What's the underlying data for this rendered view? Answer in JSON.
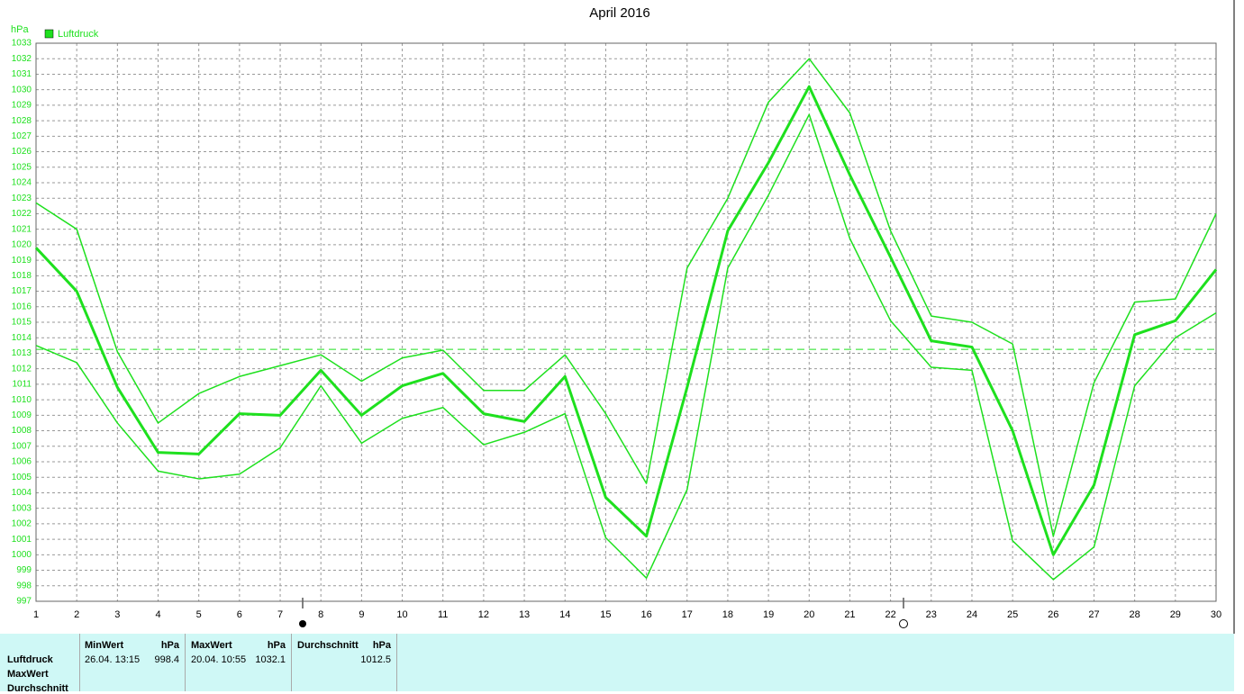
{
  "chart_data": {
    "type": "line",
    "title": "April 2016",
    "y_unit": "hPa",
    "x": [
      1,
      2,
      3,
      4,
      5,
      6,
      7,
      8,
      9,
      10,
      11,
      12,
      13,
      14,
      15,
      16,
      17,
      18,
      19,
      20,
      21,
      22,
      23,
      24,
      25,
      26,
      27,
      28,
      29,
      30
    ],
    "series": [
      {
        "name": "Luftdruck",
        "color": "#1ee01e",
        "values": [
          1019.8,
          1017.0,
          1010.8,
          1006.6,
          1006.5,
          1009.1,
          1009.0,
          1011.9,
          1009.0,
          1010.9,
          1011.7,
          1009.1,
          1008.6,
          1011.5,
          1003.7,
          1001.2,
          1010.8,
          1020.9,
          1025.3,
          1030.2,
          1024.5,
          1019.2,
          1013.8,
          1013.4,
          1008.0,
          1000.0,
          1004.5,
          1014.2,
          1015.1,
          1018.4
        ],
        "max_values": [
          1022.7,
          1021.0,
          1013.1,
          1008.5,
          1010.4,
          1011.5,
          1012.2,
          1012.9,
          1011.2,
          1012.7,
          1013.2,
          1010.6,
          1010.6,
          1012.9,
          1009.1,
          1004.6,
          1018.5,
          1023.0,
          1029.2,
          1032.0,
          1028.5,
          1020.9,
          1015.4,
          1015.0,
          1013.6,
          1001.2,
          1011.1,
          1016.3,
          1016.5,
          1022.0
        ],
        "min_values": [
          1013.5,
          1012.4,
          1008.5,
          1005.4,
          1004.9,
          1005.2,
          1006.9,
          1010.9,
          1007.2,
          1008.8,
          1009.5,
          1007.1,
          1007.9,
          1009.1,
          1001.1,
          998.5,
          1004.2,
          1018.5,
          1023.2,
          1028.4,
          1020.4,
          1015.1,
          1012.1,
          1011.9,
          1000.9,
          998.4,
          1000.5,
          1010.9,
          1014.0,
          1015.6
        ]
      }
    ],
    "reference_line": 1013.25,
    "xlim": [
      1,
      30
    ],
    "xticks": [
      1,
      2,
      3,
      4,
      5,
      6,
      7,
      8,
      9,
      10,
      11,
      12,
      13,
      14,
      15,
      16,
      17,
      18,
      19,
      20,
      21,
      22,
      23,
      24,
      25,
      26,
      27,
      28,
      29,
      30
    ],
    "ylim": [
      997,
      1033
    ],
    "yticks": [
      997,
      998,
      999,
      1000,
      1001,
      1002,
      1003,
      1004,
      1005,
      1006,
      1007,
      1008,
      1009,
      1010,
      1011,
      1012,
      1013,
      1014,
      1015,
      1016,
      1017,
      1018,
      1019,
      1020,
      1021,
      1022,
      1023,
      1024,
      1025,
      1026,
      1027,
      1028,
      1029,
      1030,
      1031,
      1032,
      1033
    ],
    "grid": true
  },
  "table": {
    "row_labels": [
      "Luftdruck",
      "MaxWert",
      "Durchschnitt"
    ],
    "columns": [
      {
        "header": "MinWert",
        "unit": "hPa",
        "time": "26.04.  13:15",
        "value": "998.4"
      },
      {
        "header": "MaxWert",
        "unit": "hPa",
        "time": "20.04.  10:55",
        "value": "1032.1"
      },
      {
        "header": "Durchschnitt",
        "unit": "hPa",
        "value": "1012.5"
      }
    ]
  }
}
